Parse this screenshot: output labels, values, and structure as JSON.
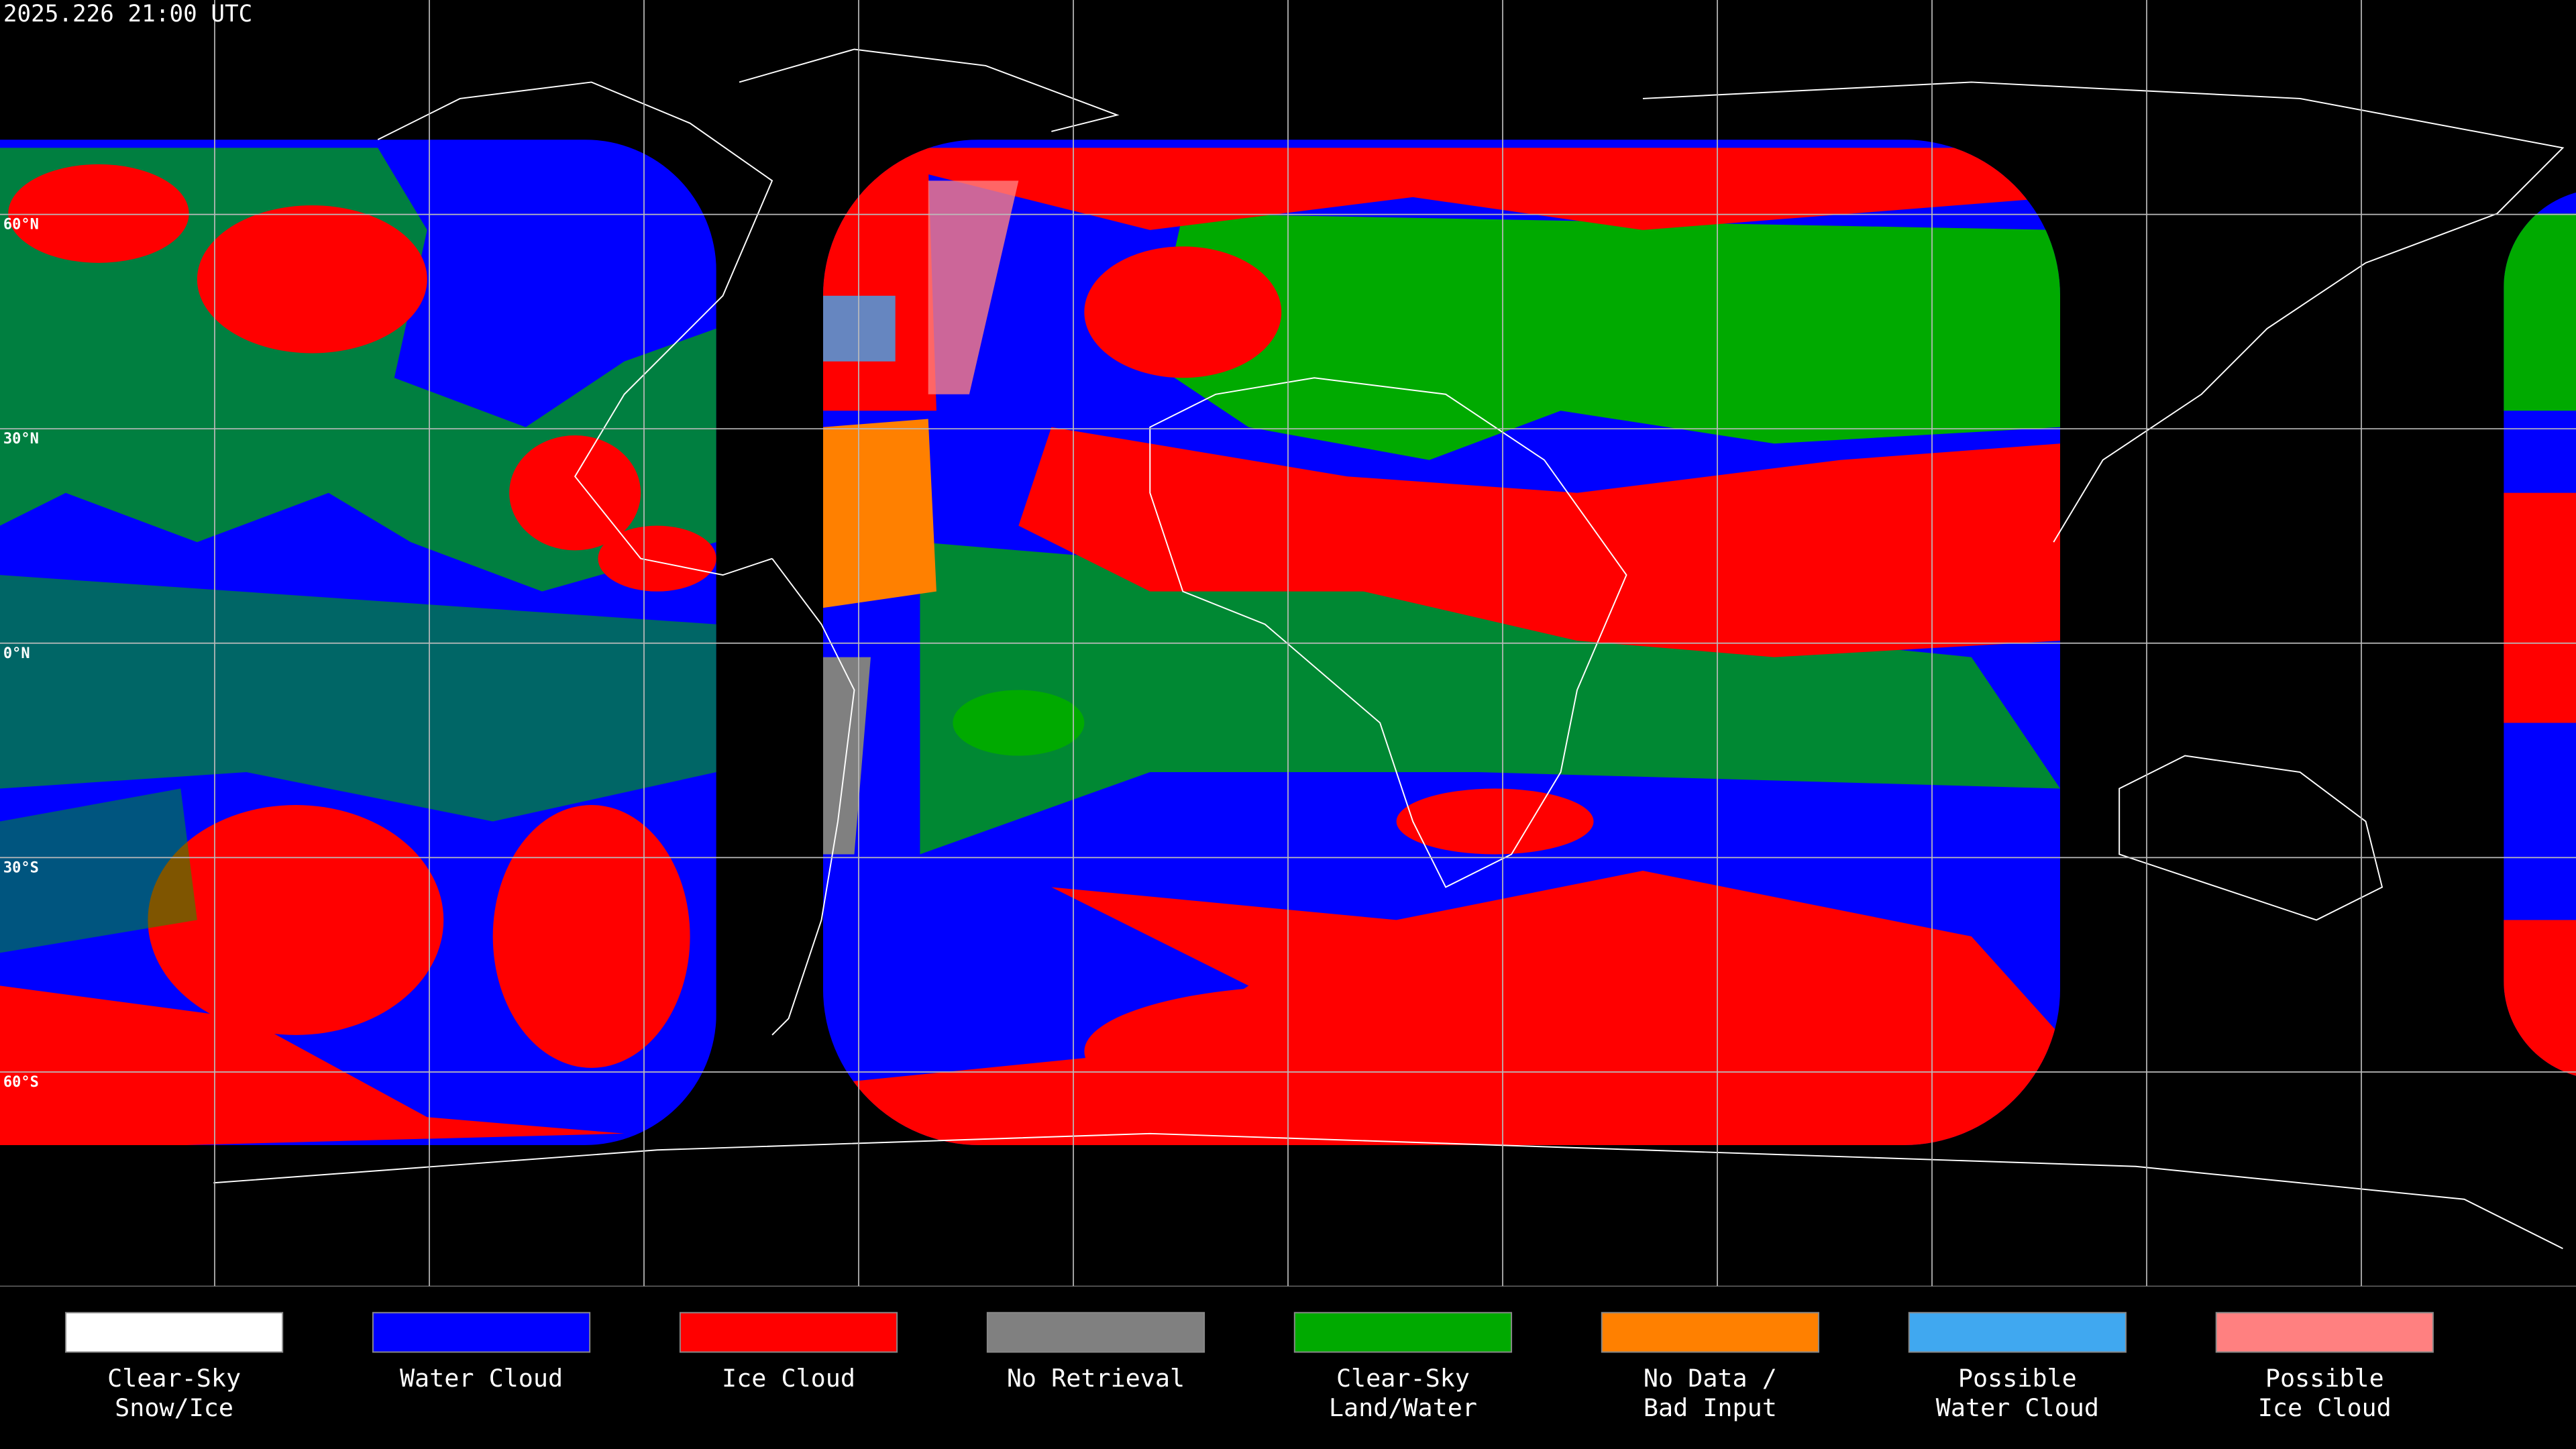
{
  "timestamp": "2025.226 21:00 UTC",
  "lat_lines": [
    {
      "value": 60,
      "label": "60°N"
    },
    {
      "value": 30,
      "label": "30°N"
    },
    {
      "value": 0,
      "label": "0°N"
    },
    {
      "value": -30,
      "label": "30°S"
    },
    {
      "value": -60,
      "label": "60°S"
    }
  ],
  "legend": [
    {
      "lines": [
        "Clear-Sky",
        "Snow/Ice"
      ],
      "color": "#ffffff"
    },
    {
      "lines": [
        "Water Cloud"
      ],
      "color": "#0000ff"
    },
    {
      "lines": [
        "Ice Cloud"
      ],
      "color": "#ff0000"
    },
    {
      "lines": [
        "No Retrieval"
      ],
      "color": "#808080"
    },
    {
      "lines": [
        "Clear-Sky",
        "Land/Water"
      ],
      "color": "#00aa00"
    },
    {
      "lines": [
        "No Data /",
        "Bad Input"
      ],
      "color": "#ff8000"
    },
    {
      "lines": [
        "Possible",
        "Water Cloud"
      ],
      "color": "#40a8f0"
    },
    {
      "lines": [
        "Possible",
        "Ice Cloud"
      ],
      "color": "#ff8080"
    }
  ]
}
